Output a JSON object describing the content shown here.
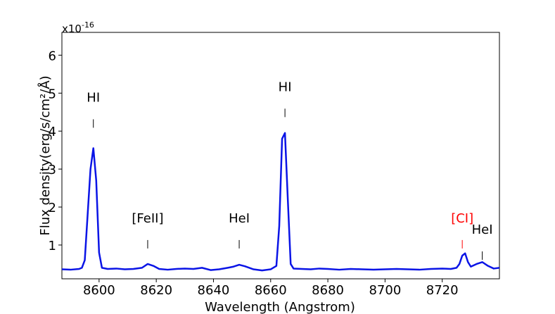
{
  "chart_data": {
    "type": "line",
    "xlabel": "Wavelength (Angstrom)",
    "ylabel": "Flux density(erg/s/cm²/Å)",
    "offset_text": "x10",
    "offset_exponent": "-16",
    "xlim": [
      8587,
      8740
    ],
    "xticks": [
      8600,
      8620,
      8640,
      8660,
      8680,
      8700,
      8720
    ],
    "ylim": [
      0.11,
      6.6
    ],
    "yticks": [
      1,
      2,
      3,
      4,
      5,
      6
    ],
    "series": [
      {
        "color": "#0a14e6",
        "x": [
          8587,
          8590,
          8593,
          8594,
          8595,
          8596,
          8597,
          8598,
          8599,
          8600,
          8601,
          8603,
          8606,
          8609,
          8612,
          8615,
          8617,
          8619,
          8621,
          8624,
          8627,
          8630,
          8633,
          8636,
          8639,
          8642,
          8645,
          8647,
          8649,
          8651,
          8654,
          8657,
          8660,
          8662,
          8663,
          8664,
          8665,
          8666,
          8667,
          8668,
          8671,
          8674,
          8677,
          8680,
          8684,
          8688,
          8692,
          8696,
          8700,
          8704,
          8708,
          8712,
          8716,
          8720,
          8723,
          8725,
          8726,
          8727,
          8728,
          8729,
          8730,
          8732,
          8734,
          8736,
          8738,
          8740
        ],
        "values": [
          0.36,
          0.35,
          0.37,
          0.4,
          0.6,
          1.8,
          3.0,
          3.55,
          2.7,
          0.8,
          0.4,
          0.37,
          0.38,
          0.36,
          0.37,
          0.4,
          0.5,
          0.45,
          0.37,
          0.35,
          0.37,
          0.38,
          0.37,
          0.4,
          0.34,
          0.36,
          0.4,
          0.43,
          0.48,
          0.44,
          0.36,
          0.33,
          0.36,
          0.45,
          1.5,
          3.8,
          3.95,
          2.2,
          0.5,
          0.38,
          0.37,
          0.36,
          0.38,
          0.37,
          0.35,
          0.37,
          0.36,
          0.35,
          0.36,
          0.37,
          0.36,
          0.35,
          0.37,
          0.38,
          0.37,
          0.4,
          0.5,
          0.72,
          0.78,
          0.55,
          0.43,
          0.5,
          0.55,
          0.45,
          0.38,
          0.4
        ]
      }
    ],
    "annotations": [
      {
        "text": "HI",
        "x": 8598,
        "y": 4.2,
        "color": "#000000"
      },
      {
        "text": "[FeII]",
        "x": 8617,
        "y": 1.02,
        "color": "#000000"
      },
      {
        "text": "HeI",
        "x": 8649,
        "y": 1.02,
        "color": "#000000"
      },
      {
        "text": "HI",
        "x": 8665,
        "y": 4.48,
        "color": "#000000"
      },
      {
        "text": "[CI]",
        "x": 8727,
        "y": 1.02,
        "color": "#ff0000"
      },
      {
        "text": "HeI",
        "x": 8734,
        "y": 0.72,
        "color": "#000000"
      }
    ]
  }
}
